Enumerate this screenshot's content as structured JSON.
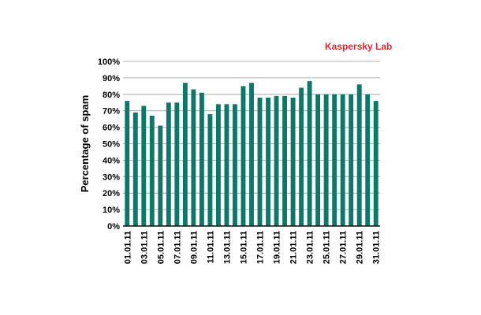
{
  "brand": {
    "label": "Kaspersky Lab",
    "color": "#e0242f"
  },
  "chart_data": {
    "type": "bar",
    "ylabel": "Percentage of spam",
    "xlabel": "",
    "ylim": [
      0,
      100
    ],
    "yticks": [
      "0%",
      "10%",
      "20%",
      "30%",
      "40%",
      "50%",
      "60%",
      "70%",
      "80%",
      "90%",
      "100%"
    ],
    "grid": true,
    "bar_color": "#0e7767",
    "categories": [
      "01.01.11",
      "02.01.11",
      "03.01.11",
      "04.01.11",
      "05.01.11",
      "06.01.11",
      "07.01.11",
      "08.01.11",
      "09.01.11",
      "10.01.11",
      "11.01.11",
      "12.01.11",
      "13.01.11",
      "14.01.11",
      "15.01.11",
      "16.01.11",
      "17.01.11",
      "18.01.11",
      "19.01.11",
      "20.01.11",
      "21.01.11",
      "22.01.11",
      "23.01.11",
      "24.01.11",
      "25.01.11",
      "26.01.11",
      "27.01.11",
      "28.01.11",
      "29.01.11",
      "30.01.11",
      "31.01.11"
    ],
    "tick_labels_shown": [
      "01.01.11",
      "",
      "03.01.11",
      "",
      "05.01.11",
      "",
      "07.01.11",
      "",
      "09.01.11",
      "",
      "11.01.11",
      "",
      "13.01.11",
      "",
      "15.01.11",
      "",
      "17.01.11",
      "",
      "19.01.11",
      "",
      "21.01.11",
      "",
      "23.01.11",
      "",
      "25.01.11",
      "",
      "27.01.11",
      "",
      "29.01.11",
      "",
      "31.01.11"
    ],
    "values": [
      76,
      69,
      73,
      67,
      61,
      75,
      75,
      87,
      83,
      81,
      68,
      74,
      74,
      74,
      85,
      87,
      78,
      78,
      79,
      79,
      78,
      84,
      88,
      80,
      80,
      80,
      80,
      80,
      86,
      80,
      76
    ]
  }
}
